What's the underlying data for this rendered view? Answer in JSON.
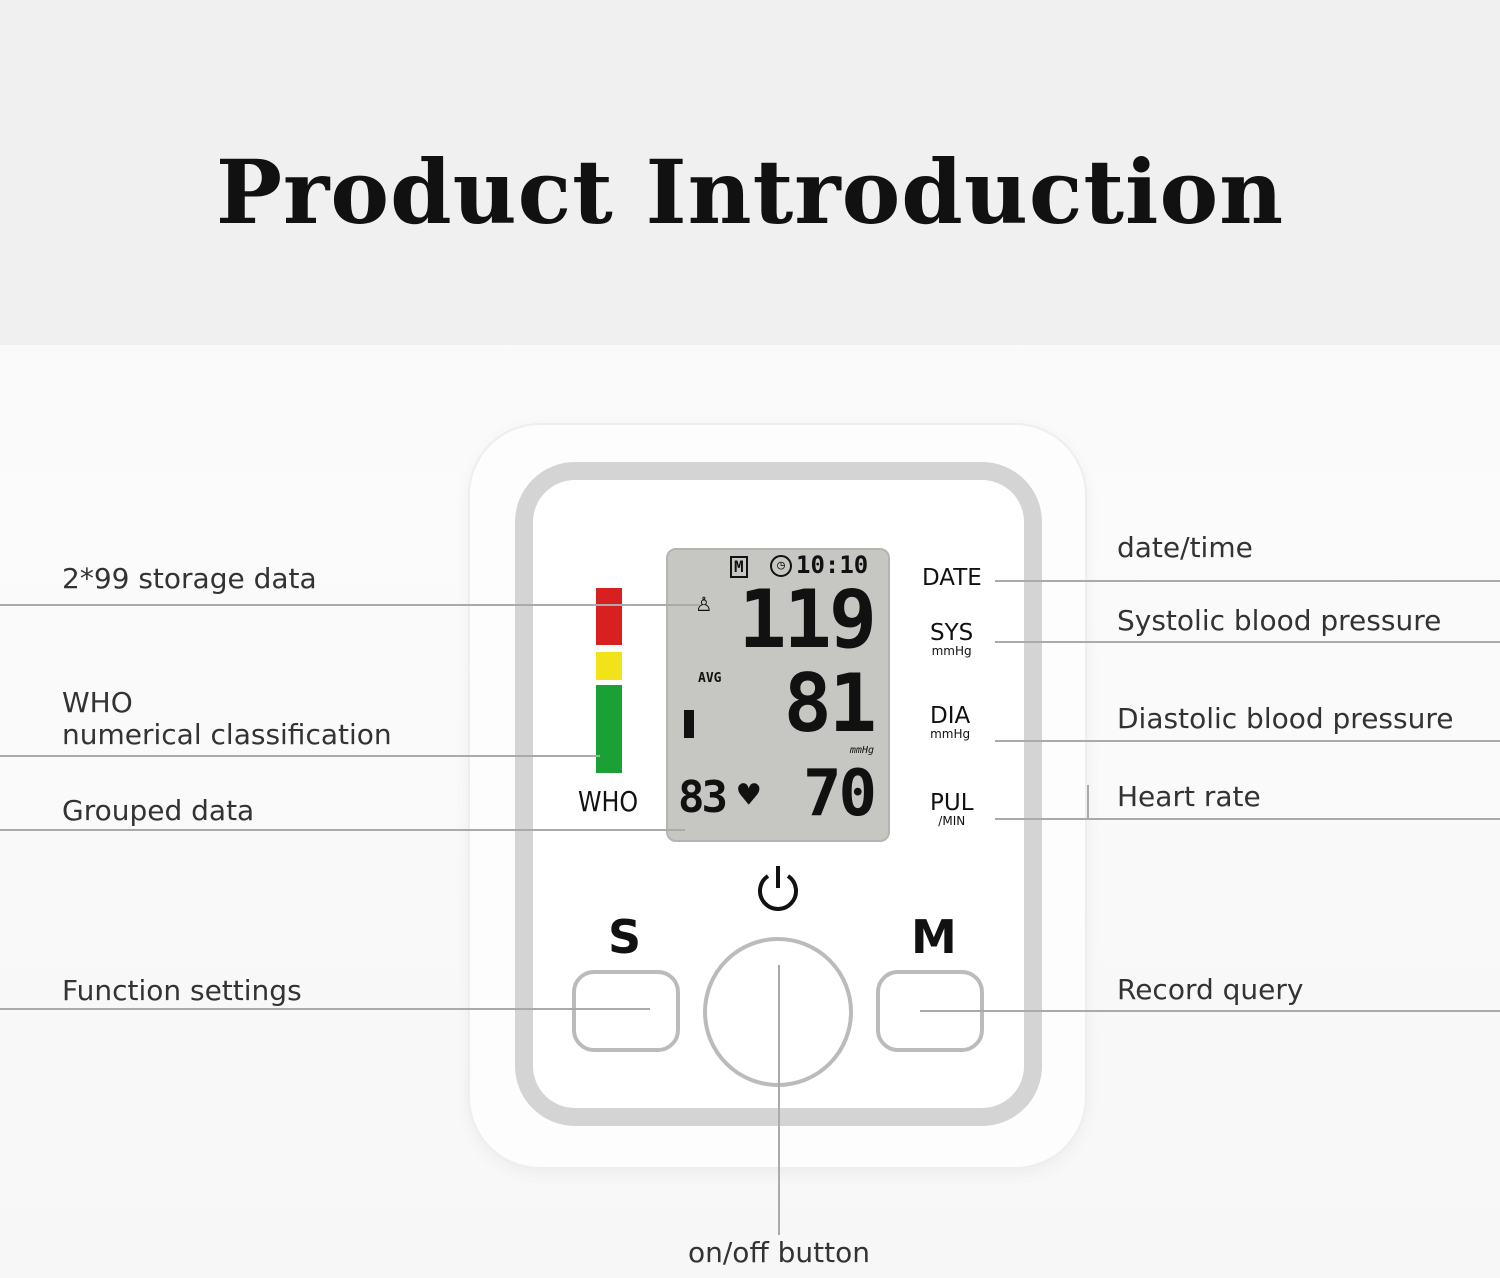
{
  "title": "Product Introduction",
  "left_labels": {
    "storage": "2*99 storage data",
    "who_line1": "WHO",
    "who_line2": "numerical classification",
    "grouped": "Grouped data",
    "function": "Function settings"
  },
  "right_labels": {
    "datetime": "date/time",
    "systolic": "Systolic blood pressure",
    "diastolic": "Diastolic blood pressure",
    "heart_rate": "Heart rate",
    "record": "Record query"
  },
  "bottom_label": "on/off button",
  "device": {
    "lcd": {
      "memory": "M",
      "time": "10:10",
      "sys": "119",
      "avg": "AVG",
      "dia": "81",
      "pulse": "70",
      "group": "83",
      "unit": "mmHg"
    },
    "side": {
      "date": "DATE",
      "sys": "SYS",
      "sys_unit": "mmHg",
      "dia": "DIA",
      "dia_unit": "mmHg",
      "pul": "PUL",
      "pul_unit": "/MIN"
    },
    "who": "WHO",
    "who_colors": {
      "red": "#d92020",
      "yellow": "#f2e21a",
      "green": "#1aa035"
    },
    "buttons": {
      "s": "S",
      "m": "M"
    }
  }
}
